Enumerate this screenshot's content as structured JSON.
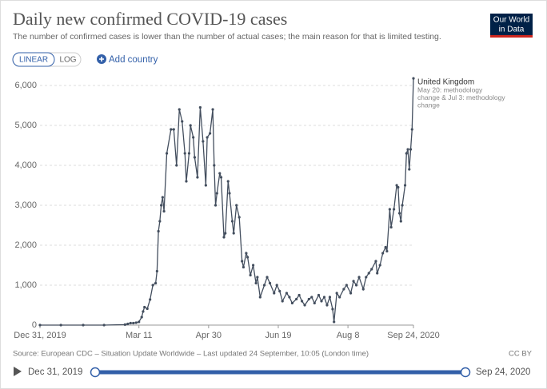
{
  "chart_data": {
    "type": "line",
    "title": "Daily new confirmed COVID-19 cases",
    "subtitle": "The number of confirmed cases is lower than the number of actual cases; the main reason for that is limited testing.",
    "x": [
      "2019-12-31",
      "2020-01-15",
      "2020-01-31",
      "2020-02-15",
      "2020-03-01",
      "2020-03-03",
      "2020-03-05",
      "2020-03-07",
      "2020-03-09",
      "2020-03-11",
      "2020-03-13",
      "2020-03-14",
      "2020-03-15",
      "2020-03-17",
      "2020-03-19",
      "2020-03-21",
      "2020-03-23",
      "2020-03-24",
      "2020-03-25",
      "2020-03-26",
      "2020-03-27",
      "2020-03-28",
      "2020-03-29",
      "2020-03-31",
      "2020-04-03",
      "2020-04-05",
      "2020-04-07",
      "2020-04-09",
      "2020-04-11",
      "2020-04-13",
      "2020-04-14",
      "2020-04-16",
      "2020-04-17",
      "2020-04-19",
      "2020-04-20",
      "2020-04-22",
      "2020-04-24",
      "2020-04-26",
      "2020-04-28",
      "2020-04-29",
      "2020-05-01",
      "2020-05-03",
      "2020-05-04",
      "2020-05-05",
      "2020-05-06",
      "2020-05-08",
      "2020-05-09",
      "2020-05-11",
      "2020-05-12",
      "2020-05-14",
      "2020-05-15",
      "2020-05-17",
      "2020-05-18",
      "2020-05-20",
      "2020-05-22",
      "2020-05-24",
      "2020-05-25",
      "2020-05-27",
      "2020-05-28",
      "2020-05-30",
      "2020-06-01",
      "2020-06-03",
      "2020-06-04",
      "2020-06-06",
      "2020-06-09",
      "2020-06-11",
      "2020-06-13",
      "2020-06-16",
      "2020-06-18",
      "2020-06-20",
      "2020-06-22",
      "2020-06-25",
      "2020-06-27",
      "2020-06-29",
      "2020-07-02",
      "2020-07-04",
      "2020-07-06",
      "2020-07-08",
      "2020-07-11",
      "2020-07-13",
      "2020-07-15",
      "2020-07-18",
      "2020-07-20",
      "2020-07-22",
      "2020-07-24",
      "2020-07-26",
      "2020-07-28",
      "2020-07-29",
      "2020-07-31",
      "2020-08-02",
      "2020-08-05",
      "2020-08-07",
      "2020-08-10",
      "2020-08-12",
      "2020-08-14",
      "2020-08-16",
      "2020-08-19",
      "2020-08-21",
      "2020-08-23",
      "2020-08-25",
      "2020-08-28",
      "2020-08-29",
      "2020-08-31",
      "2020-09-02",
      "2020-09-04",
      "2020-09-05",
      "2020-09-07",
      "2020-09-08",
      "2020-09-10",
      "2020-09-12",
      "2020-09-13",
      "2020-09-14",
      "2020-09-15",
      "2020-09-16",
      "2020-09-18",
      "2020-09-19",
      "2020-09-20",
      "2020-09-21",
      "2020-09-22",
      "2020-09-23",
      "2020-09-24"
    ],
    "series": [
      {
        "name": "United Kingdom",
        "color": "#434e5e",
        "values": [
          0,
          0,
          0,
          0,
          12,
          30,
          50,
          50,
          60,
          80,
          200,
          340,
          450,
          410,
          640,
          1000,
          1050,
          1350,
          2350,
          2600,
          3000,
          3200,
          2850,
          4300,
          4900,
          4900,
          4000,
          5400,
          5100,
          4300,
          3600,
          4300,
          5000,
          4700,
          4200,
          3700,
          5450,
          4600,
          3500,
          4700,
          4800,
          5400,
          4000,
          3000,
          3300,
          3800,
          3700,
          2200,
          2300,
          3600,
          3300,
          2600,
          2300,
          3000,
          2700,
          1600,
          1450,
          1800,
          1700,
          1250,
          1500,
          1050,
          1200,
          700,
          1000,
          1200,
          1050,
          800,
          1000,
          850,
          600,
          800,
          700,
          550,
          650,
          750,
          600,
          500,
          650,
          700,
          550,
          750,
          600,
          700,
          500,
          700,
          400,
          80,
          800,
          700,
          900,
          1000,
          800,
          1100,
          1000,
          1200,
          900,
          1200,
          1300,
          1400,
          1600,
          1300,
          1500,
          1800,
          1950,
          1850,
          2900,
          2450,
          2900,
          3500,
          3450,
          2800,
          2600,
          3000,
          3500,
          4300,
          4400,
          3900,
          4400,
          4900,
          6178
        ]
      }
    ],
    "annotation": [
      "May 20: methodology",
      "change & Jul 3: methodology",
      "change"
    ],
    "xlim": [
      "2019-12-31",
      "2020-09-24"
    ],
    "xticks": [
      {
        "value": "2019-12-31",
        "label": "Dec 31, 2019"
      },
      {
        "value": "2020-03-11",
        "label": "Mar 11"
      },
      {
        "value": "2020-04-30",
        "label": "Apr 30"
      },
      {
        "value": "2020-06-19",
        "label": "Jun 19"
      },
      {
        "value": "2020-08-08",
        "label": "Aug 8"
      },
      {
        "value": "2020-09-24",
        "label": "Sep 24, 2020"
      }
    ],
    "ylim": [
      0,
      6200
    ],
    "yticks": [
      0,
      {
        "value": 1000,
        "label": "1,000"
      },
      {
        "value": 2000,
        "label": "2,000"
      },
      {
        "value": 3000,
        "label": "3,000"
      },
      {
        "value": 4000,
        "label": "4,000"
      },
      {
        "value": 5000,
        "label": "5,000"
      },
      {
        "value": 6000,
        "label": "6,000"
      }
    ],
    "grid": true
  },
  "controls": {
    "scale_options": [
      "LINEAR",
      "LOG"
    ],
    "add_country": "Add country"
  },
  "logo": [
    "Our World",
    "in Data"
  ],
  "source": "Source: European CDC – Situation Update Worldwide – Last updated 24 September, 10:05 (London time)",
  "license": "CC BY",
  "timeline": {
    "start": "Dec 31, 2019",
    "end": "Sep 24, 2020"
  }
}
